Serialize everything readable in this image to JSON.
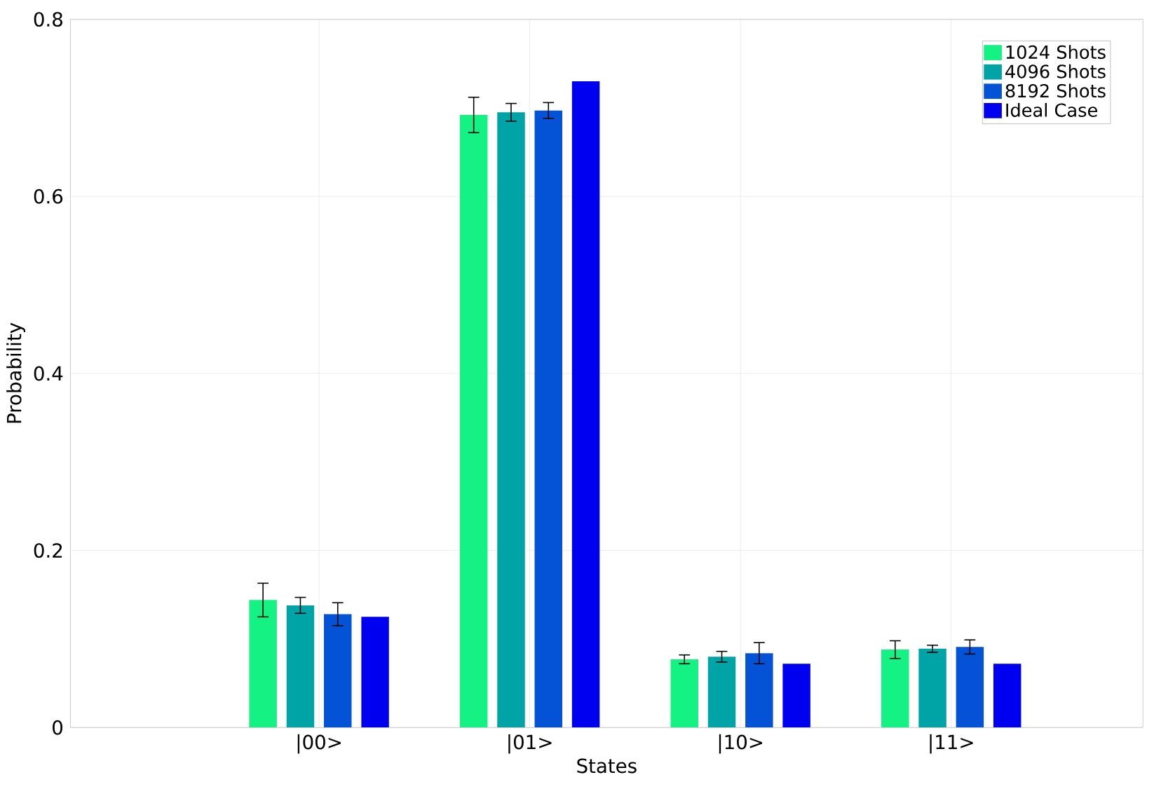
{
  "chart_data": {
    "type": "bar",
    "xlabel": "States",
    "ylabel": "Probability",
    "categories": [
      "|00>",
      "|01>",
      "|10>",
      "|11>"
    ],
    "series": [
      {
        "name": "1024 Shots",
        "color": "#14f283",
        "values": [
          0.144,
          0.692,
          0.077,
          0.088
        ],
        "errors": [
          0.019,
          0.02,
          0.005,
          0.01
        ]
      },
      {
        "name": "4096 Shots",
        "color": "#00a3a6",
        "values": [
          0.138,
          0.695,
          0.08,
          0.089
        ],
        "errors": [
          0.009,
          0.01,
          0.006,
          0.004
        ]
      },
      {
        "name": "8192 Shots",
        "color": "#0452d6",
        "values": [
          0.128,
          0.697,
          0.084,
          0.091
        ],
        "errors": [
          0.013,
          0.009,
          0.012,
          0.008
        ]
      },
      {
        "name": "Ideal Case",
        "color": "#0000f0",
        "values": [
          0.125,
          0.73,
          0.072,
          0.072
        ]
      }
    ],
    "ylim": [
      0,
      0.8
    ],
    "yticks": [
      0,
      0.2,
      0.4,
      0.6,
      0.8
    ],
    "grid": true,
    "legend": "top right"
  }
}
